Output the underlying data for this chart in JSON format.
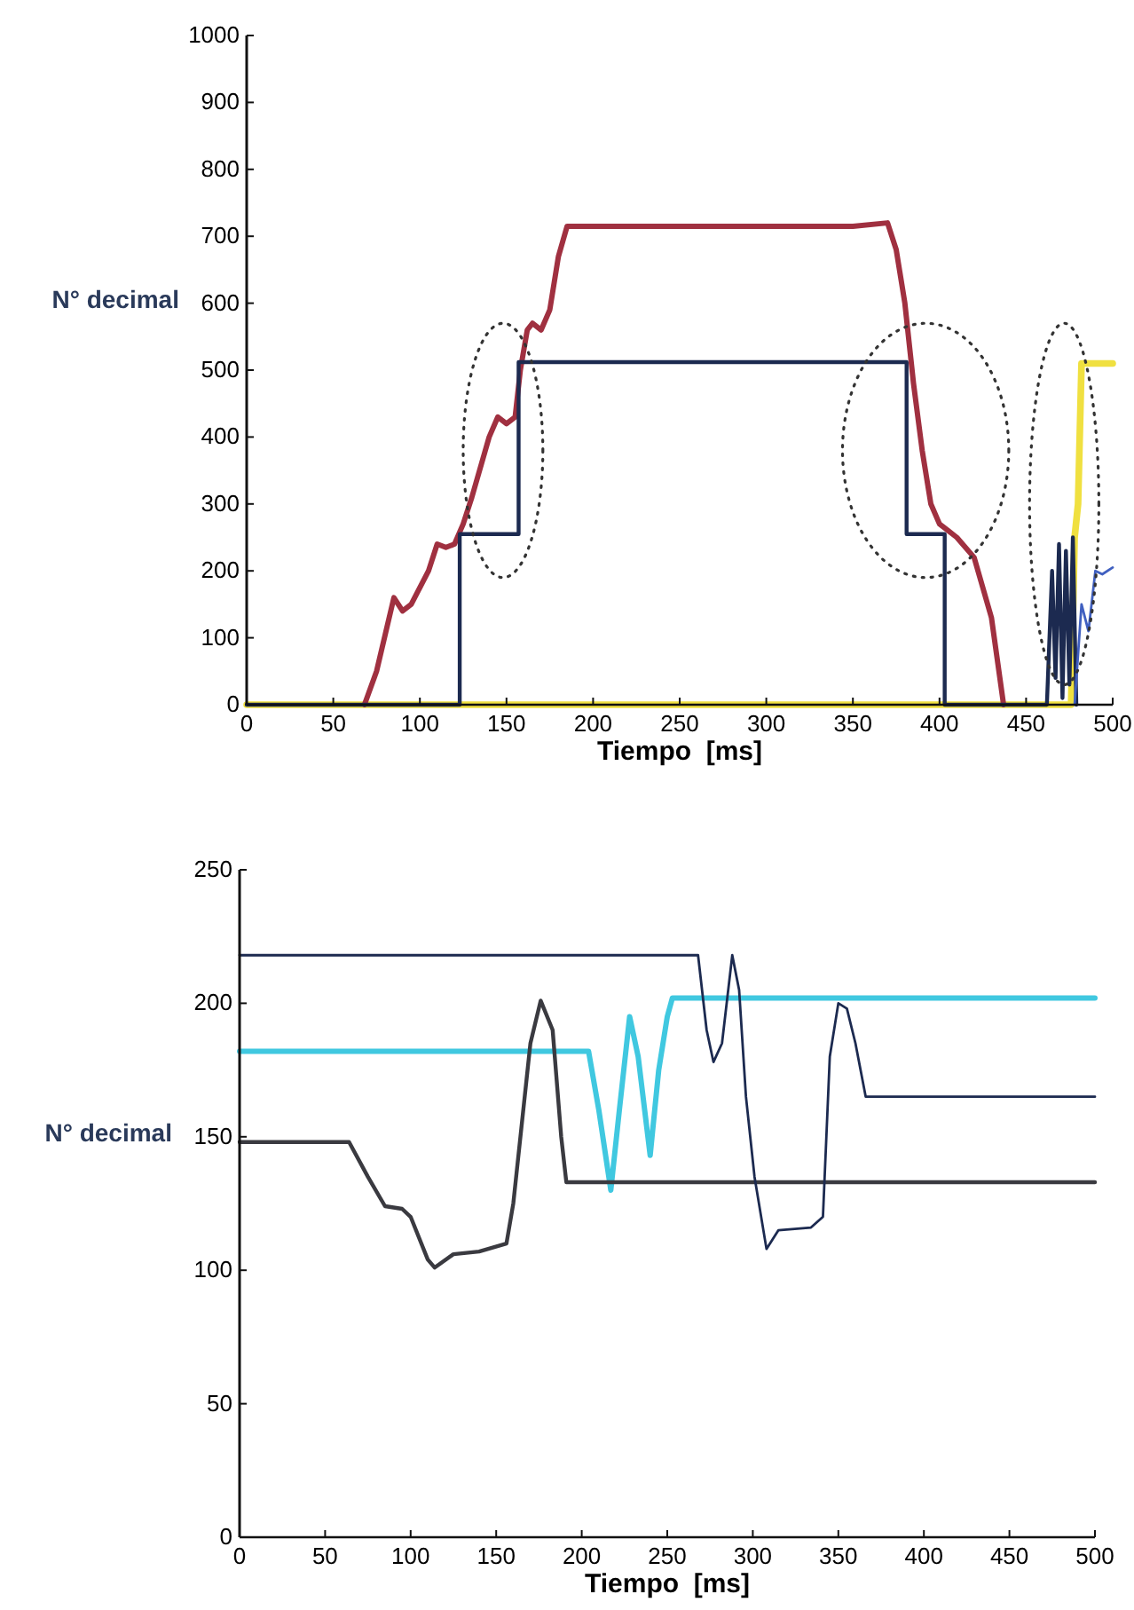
{
  "chart_data": [
    {
      "type": "line",
      "xlabel": "Tiempo  [ms]",
      "ylabel": "N° decimal",
      "xlim": [
        0,
        500
      ],
      "xticks": [
        0,
        50,
        100,
        150,
        200,
        250,
        300,
        350,
        400,
        450,
        500
      ],
      "ylim": [
        0,
        1000
      ],
      "yticks": [
        0,
        100,
        200,
        300,
        400,
        500,
        600,
        700,
        800,
        900,
        1000
      ],
      "grid": false,
      "marker": "none",
      "line_style": "solid",
      "series": [
        {
          "color": "#f0e040",
          "x": [
            0,
            476,
            478,
            480,
            482,
            500
          ],
          "values": [
            0,
            0,
            250,
            300,
            510,
            510
          ]
        },
        {
          "color": "#a03040",
          "x": [
            68,
            75,
            85,
            90,
            95,
            105,
            110,
            115,
            120,
            125,
            130,
            140,
            145,
            150,
            155,
            158,
            162,
            165,
            170,
            175,
            180,
            185,
            200,
            250,
            300,
            350,
            370,
            375,
            380,
            385,
            390,
            395,
            400,
            405,
            410,
            420,
            430,
            437
          ],
          "values": [
            0,
            50,
            160,
            140,
            150,
            200,
            240,
            235,
            240,
            270,
            310,
            400,
            430,
            420,
            430,
            500,
            560,
            570,
            560,
            590,
            670,
            715,
            715,
            715,
            715,
            715,
            720,
            680,
            600,
            480,
            380,
            300,
            270,
            260,
            250,
            220,
            130,
            0
          ]
        },
        {
          "color": "#1c2a50",
          "x": [
            0,
            123,
            123,
            157,
            157,
            381,
            381,
            403,
            403,
            462,
            465,
            467,
            469,
            471,
            473,
            475,
            477,
            479
          ],
          "values": [
            0,
            0,
            255,
            255,
            512,
            512,
            255,
            255,
            0,
            0,
            200,
            40,
            240,
            10,
            230,
            30,
            250,
            0
          ]
        },
        {
          "color": "#4060c0",
          "x": [
            478,
            482,
            486,
            490,
            494,
            500
          ],
          "values": [
            0,
            150,
            110,
            200,
            195,
            205
          ]
        }
      ]
    },
    {
      "type": "line",
      "xlabel": "Tiempo  [ms]",
      "ylabel": "N° decimal",
      "xlim": [
        0,
        500
      ],
      "xticks": [
        0,
        50,
        100,
        150,
        200,
        250,
        300,
        350,
        400,
        450,
        500
      ],
      "ylim": [
        0,
        250
      ],
      "yticks": [
        0,
        50,
        100,
        150,
        200,
        250
      ],
      "grid": false,
      "marker": "none",
      "line_style": "solid",
      "series": [
        {
          "color": "#40c8e0",
          "x": [
            0,
            204,
            210,
            217,
            222,
            228,
            233,
            240,
            245,
            250,
            253,
            500
          ],
          "values": [
            182,
            182,
            160,
            130,
            160,
            195,
            180,
            143,
            175,
            195,
            202,
            202
          ]
        },
        {
          "color": "#3a3a40",
          "x": [
            0,
            64,
            75,
            85,
            95,
            100,
            110,
            114,
            125,
            140,
            156,
            160,
            170,
            176,
            183,
            188,
            191,
            500
          ],
          "values": [
            148,
            148,
            135,
            124,
            123,
            120,
            104,
            101,
            106,
            107,
            110,
            125,
            185,
            201,
            190,
            150,
            133,
            133
          ]
        },
        {
          "color": "#1c2a50",
          "x": [
            0,
            268,
            273,
            277,
            282,
            288,
            292,
            296,
            301,
            308,
            315,
            334,
            341,
            345,
            350,
            355,
            360,
            366,
            500
          ],
          "values": [
            218,
            218,
            190,
            178,
            185,
            218,
            205,
            165,
            135,
            108,
            115,
            116,
            120,
            180,
            200,
            198,
            185,
            165,
            165
          ]
        }
      ]
    }
  ]
}
